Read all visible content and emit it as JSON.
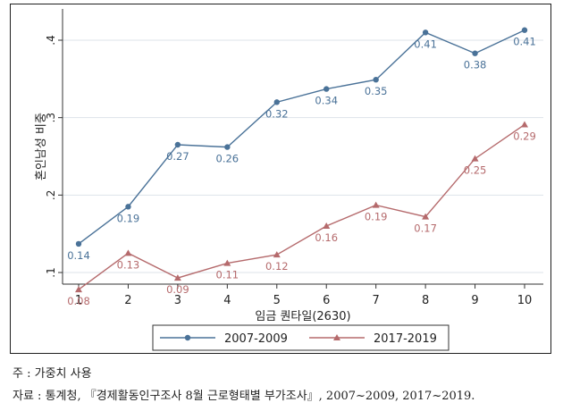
{
  "chart_data": {
    "type": "line",
    "x": [
      1,
      2,
      3,
      4,
      5,
      6,
      7,
      8,
      9,
      10
    ],
    "xticks": [
      "1",
      "2",
      "3",
      "4",
      "5",
      "6",
      "7",
      "8",
      "9",
      "10"
    ],
    "yticks": [
      ".1",
      ".2",
      ".3",
      ".4"
    ],
    "ytick_values": [
      0.1,
      0.2,
      0.3,
      0.4
    ],
    "xlabel": "임금 퀀타일(2630)",
    "ylabel": "혼인남성 비중",
    "xlim": [
      1,
      10
    ],
    "ylim": [
      0.07,
      0.43
    ],
    "grid": true,
    "legend_position": "bottom",
    "series": [
      {
        "name": "2007-2009",
        "color": "#4a7298",
        "marker": "circle",
        "values": [
          0.137,
          0.185,
          0.265,
          0.262,
          0.32,
          0.337,
          0.349,
          0.41,
          0.383,
          0.413
        ],
        "labels": [
          "0.14",
          "0.19",
          "0.27",
          "0.26",
          "0.32",
          "0.34",
          "0.35",
          "0.41",
          "0.38",
          "0.41"
        ],
        "label_pos": [
          "below",
          "below",
          "below",
          "below",
          "below",
          "below",
          "below",
          "below",
          "below",
          "below"
        ]
      },
      {
        "name": "2017-2019",
        "color": "#b56a6c",
        "marker": "triangle",
        "values": [
          0.078,
          0.125,
          0.093,
          0.112,
          0.123,
          0.16,
          0.187,
          0.172,
          0.247,
          0.291
        ],
        "labels": [
          "0.08",
          "0.13",
          "0.09",
          "0.11",
          "0.12",
          "0.16",
          "0.19",
          "0.17",
          "0.25",
          "0.29"
        ],
        "label_pos": [
          "below",
          "below",
          "below",
          "below",
          "below",
          "below",
          "below",
          "below",
          "below",
          "below"
        ]
      }
    ]
  },
  "notes": {
    "note1": "주 : 가중치 사용",
    "note2": "자료 : 통계청, 『경제활동인구조사 8월 근로형태별 부가조사』, 2007~2009, 2017~2019."
  }
}
